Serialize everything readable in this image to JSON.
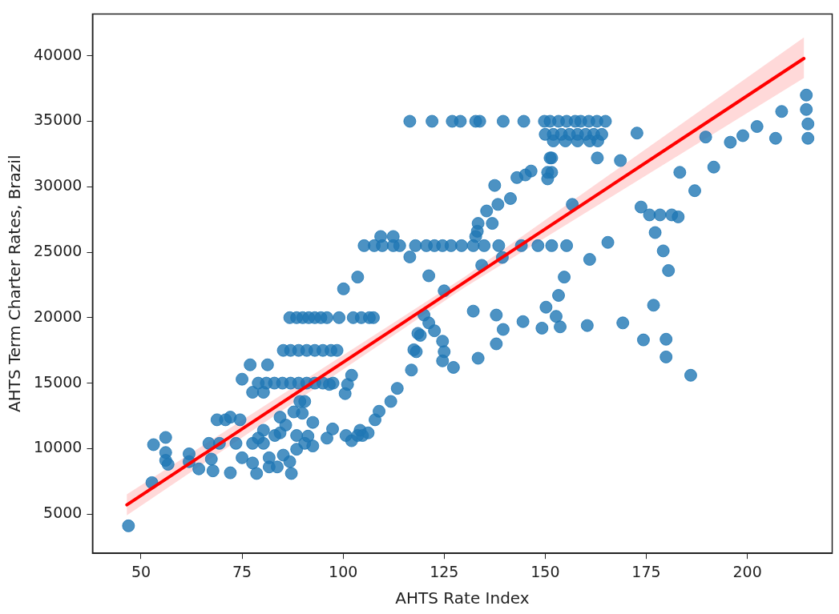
{
  "chart_data": {
    "type": "scatter",
    "xlabel": "AHTS Rate Index",
    "ylabel": "AHTS Term Charter Rates, Brazil",
    "xlim": [
      38,
      221
    ],
    "ylim": [
      2000,
      43200
    ],
    "xticks": [
      50,
      75,
      100,
      125,
      150,
      175,
      200
    ],
    "yticks": [
      5000,
      10000,
      15000,
      20000,
      25000,
      30000,
      35000,
      40000
    ],
    "grid": false,
    "legend": false,
    "marker": "circle",
    "series": [
      {
        "color": "#1f77b4",
        "x": [
          46.9,
          52.7,
          53.1,
          56.1,
          56.1,
          56.1,
          56.7,
          61.9,
          61.9,
          64.3,
          67.4,
          67.8,
          66.8,
          68.8,
          70.9,
          72.1,
          74.5,
          72.1,
          75,
          77,
          77.6,
          80.3,
          81.3,
          79,
          81,
          83,
          85,
          87,
          89,
          91,
          93,
          95,
          97.5,
          75,
          77.6,
          78.6,
          81.7,
          83.7,
          86.8,
          87.2,
          80.3,
          77.6,
          73.5,
          69.4,
          85.8,
          84.4,
          88.5,
          90.5,
          92.5,
          89.9,
          90.5,
          92.5,
          96,
          97.4,
          100.7,
          104.2,
          104.8,
          107.9,
          108.9,
          111.8,
          113.4,
          116.9,
          117.5,
          118.5,
          100.5,
          101.1,
          102.1,
          80.3,
          83.1,
          79,
          81.7,
          85.2,
          88.5,
          91.3,
          102.1,
          103.6,
          106.2,
          84.4,
          87.8,
          89.3,
          96.6,
          85.2,
          87,
          89,
          91,
          93,
          95,
          97,
          98.5,
          86.8,
          88.5,
          90,
          91.5,
          93,
          94.5,
          96,
          99,
          102.5,
          104.5,
          106.5,
          107.5,
          116.5,
          122,
          127,
          129,
          132.8,
          133.8,
          139.6,
          144.7,
          149.8,
          151.2,
          153.3,
          155.3,
          157.4,
          158.8,
          160.8,
          162.8,
          164.9,
          150,
          152,
          154,
          156,
          158,
          160,
          162,
          164,
          152,
          155,
          158,
          161,
          163,
          172.7,
          162.9,
          168.6,
          151.6,
          151.6,
          151.2,
          150.6,
          150.6,
          146.5,
          145.1,
          143,
          137.5,
          141.4,
          138.3,
          135.5,
          136.9,
          133.4,
          133.2,
          132.8,
          156.7,
          105.2,
          107.7,
          109.7,
          112.4,
          114,
          117.9,
          120.6,
          122.6,
          124.6,
          126.7,
          129.3,
          132.2,
          134.9,
          138.5,
          144.1,
          148.2,
          151.6,
          155.3,
          109.3,
          112.4,
          116.5,
          165.5,
          161,
          139.4,
          134.3,
          121.2,
          125,
          103.6,
          100.1,
          154.7,
          153.3,
          150.2,
          152.7,
          153.7,
          149.2,
          144.5,
          137.9,
          139.6,
          137.9,
          132.2,
          133.4,
          160.4,
          169.2,
          120,
          121.2,
          122.6,
          124.6,
          125,
          124.6,
          127.3,
          119.1,
          118.1,
          214.6,
          214.6,
          215,
          215,
          208.5,
          207,
          202.4,
          198.9,
          195.8,
          189.7,
          191.7,
          183.3,
          187,
          173.7,
          175.8,
          178.4,
          181.3,
          182.9,
          177.2,
          179.2,
          180.5,
          176.8,
          174.3,
          179.9,
          179.9,
          186
        ],
        "values": [
          4100,
          7400,
          10300,
          10850,
          9700,
          9100,
          8800,
          9600,
          9000,
          8450,
          9200,
          8300,
          10400,
          12200,
          12200,
          12400,
          12200,
          8150,
          15300,
          16400,
          14300,
          14300,
          16400,
          15000,
          15000,
          15000,
          15000,
          15000,
          15000,
          15000,
          15000,
          15000,
          15000,
          9300,
          8900,
          8100,
          8600,
          8600,
          9000,
          8100,
          10400,
          10400,
          10400,
          10400,
          11800,
          11200,
          11000,
          10400,
          10200,
          12700,
          13600,
          12000,
          10800,
          11500,
          11000,
          11400,
          11000,
          12200,
          12850,
          13600,
          14600,
          16000,
          17550,
          18800,
          14200,
          14900,
          15600,
          11400,
          11000,
          10800,
          9300,
          9500,
          9950,
          10950,
          10600,
          11000,
          11200,
          12400,
          12800,
          13600,
          14900,
          17500,
          17500,
          17500,
          17500,
          17500,
          17500,
          17500,
          17500,
          20000,
          20000,
          20000,
          20000,
          20000,
          20000,
          20000,
          20000,
          20000,
          20000,
          20000,
          20000,
          35000,
          35000,
          35000,
          35000,
          35000,
          35000,
          35000,
          35000,
          35000,
          35000,
          35000,
          35000,
          35000,
          35000,
          35000,
          35000,
          35000,
          34000,
          34000,
          34000,
          34000,
          34000,
          34000,
          34000,
          34000,
          33500,
          33500,
          33500,
          33500,
          33500,
          34100,
          32200,
          32000,
          32200,
          31100,
          32200,
          31100,
          30600,
          31200,
          30900,
          30700,
          30100,
          29100,
          28650,
          28150,
          27200,
          27200,
          26600,
          26200,
          28650,
          25500,
          25500,
          25500,
          25500,
          25500,
          25500,
          25500,
          25500,
          25500,
          25500,
          25500,
          25500,
          25500,
          25500,
          25500,
          25500,
          25500,
          25500,
          26200,
          26200,
          24640,
          25750,
          24450,
          24600,
          24000,
          23200,
          22050,
          23100,
          22200,
          23100,
          21700,
          20800,
          20100,
          19300,
          19200,
          19700,
          20200,
          19100,
          18000,
          20500,
          16900,
          19400,
          19600,
          20200,
          19600,
          19000,
          18200,
          17400,
          16700,
          16200,
          18650,
          17400,
          37000,
          35900,
          34800,
          33700,
          35750,
          33700,
          34600,
          33900,
          33400,
          33800,
          31500,
          31100,
          29700,
          28450,
          27850,
          27850,
          27850,
          27700,
          26500,
          25100,
          23600,
          20950,
          18300,
          18350,
          17000,
          15600
        ]
      },
      {
        "type": "line",
        "marker": "none",
        "color": "#ff0000",
        "x": [
          46.5,
          130,
          214
        ],
        "values": [
          5700,
          22700,
          39800
        ],
        "lower": [
          4900,
          22300,
          38300
        ],
        "upper": [
          6500,
          23100,
          41400
        ]
      }
    ]
  }
}
